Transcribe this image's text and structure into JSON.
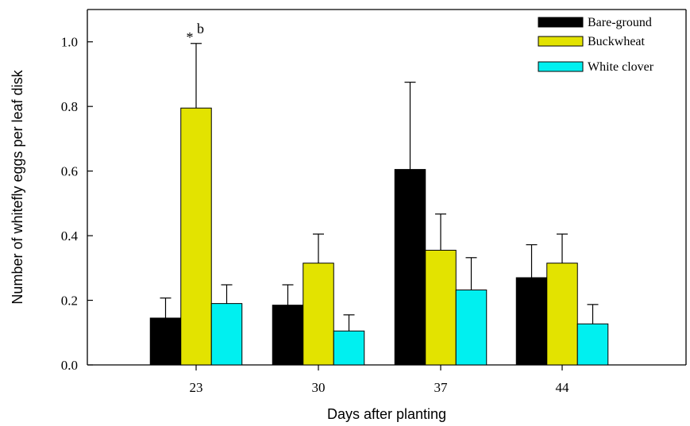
{
  "chart_data": {
    "type": "bar",
    "xlabel": "Days after planting",
    "ylabel": "Number of whitefly eggs per leaf disk",
    "categories": [
      "23",
      "30",
      "37",
      "44"
    ],
    "ylim": [
      0,
      1.1
    ],
    "yticks": [
      0.0,
      0.2,
      0.4,
      0.6,
      0.8,
      1.0
    ],
    "ytick_labels": [
      "0.0",
      "0.2",
      "0.4",
      "0.6",
      "0.8",
      "1.0"
    ],
    "grid": false,
    "legend_position": "top-right",
    "series": [
      {
        "name": "Bare-ground",
        "color": "#000000",
        "values": [
          0.145,
          0.185,
          0.605,
          0.27
        ],
        "errors": [
          0.062,
          0.063,
          0.27,
          0.102
        ]
      },
      {
        "name": "Buckwheat",
        "color": "#e3e300",
        "values": [
          0.795,
          0.315,
          0.355,
          0.315
        ],
        "errors": [
          0.2,
          0.09,
          0.112,
          0.09
        ]
      },
      {
        "name": "White clover",
        "color": "#00f0f0",
        "values": [
          0.19,
          0.105,
          0.232,
          0.127
        ],
        "errors": [
          0.058,
          0.05,
          0.1,
          0.06
        ]
      }
    ],
    "annotations": [
      {
        "text": "b",
        "category": "23",
        "series": "Buckwheat"
      }
    ]
  }
}
